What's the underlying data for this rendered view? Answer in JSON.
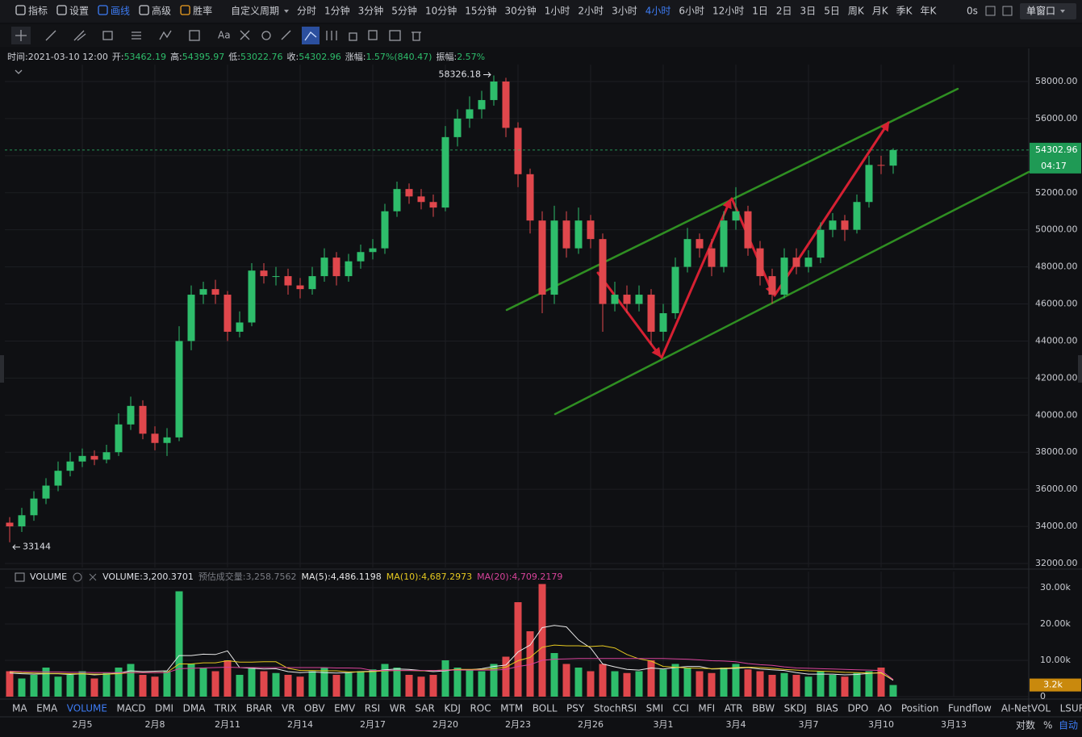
{
  "toolbar": {
    "left": [
      "指标",
      "设置",
      "画线",
      "高级",
      "胜率"
    ],
    "custom": "自定义周期",
    "periods": [
      "分时",
      "1分钟",
      "3分钟",
      "5分钟",
      "10分钟",
      "15分钟",
      "30分钟",
      "1小时",
      "2小时",
      "3小时",
      "4小时",
      "6小时",
      "12小时",
      "1日",
      "2日",
      "3日",
      "5日",
      "周K",
      "月K",
      "季K",
      "年K"
    ],
    "timer": "0s",
    "window": "单窗口",
    "font_tool": "Aa"
  },
  "info": [
    {
      "label": "时间:",
      "value": "2021-03-10 12:00"
    },
    {
      "label": "开:"
    },
    {
      "label": "高:"
    },
    {
      "label": "低:"
    },
    {
      "label": "收:"
    },
    {
      "label": "涨幅:",
      "value": "1.57%(840.47)"
    },
    {
      "label": "振幅:",
      "value": "2.57%"
    }
  ],
  "countdown": "04:17",
  "volume_header": {
    "name": "VOLUME",
    "items": [
      "VOLUME:3,200.3701",
      "预估成交量:3,258.7562",
      "MA(5):4,486.1198",
      "MA(10):4,687.2973",
      "MA(20):4,709.2179"
    ]
  },
  "indicator_tabs": [
    "MA",
    "EMA",
    "VOLUME",
    "MACD",
    "DMI",
    "DMA",
    "TRIX",
    "BRAR",
    "VR",
    "OBV",
    "EMV",
    "RSI",
    "WR",
    "SAR",
    "KDJ",
    "ROC",
    "MTM",
    "BOLL",
    "PSY",
    "StochRSI",
    "SMI",
    "CCI",
    "MFI",
    "ATR",
    "BBW",
    "SKDJ",
    "BIAS",
    "DPO",
    "AO",
    "Position",
    "Fundflow",
    "AI-NetVOL",
    "LSUR"
  ],
  "scale_options": [
    "对数",
    "%",
    "自动"
  ],
  "chart_data": [
    {
      "type": "candlestick",
      "up_color": "#2ebd6b",
      "down_color": "#e0474c",
      "grid": true,
      "x": [
        -3,
        -2.5,
        -2,
        -1.5,
        -1,
        -0.5,
        0,
        0.5,
        1,
        1.5,
        2,
        2.5,
        3,
        3.5,
        4,
        4.5,
        5,
        5.5,
        6,
        6.5,
        7,
        7.5,
        8,
        8.5,
        9,
        9.5,
        10,
        10.5,
        11,
        11.5,
        12,
        12.5,
        13,
        13.5,
        14,
        14.5,
        15,
        15.5,
        16,
        16.5,
        17,
        17.5,
        18,
        18.5,
        19,
        19.5,
        20,
        20.5,
        21,
        21.5,
        22,
        22.5,
        23,
        23.5,
        24,
        24.5,
        25,
        25.5,
        26,
        26.5,
        27,
        27.5,
        28,
        28.5,
        29,
        29.5,
        30,
        30.5,
        31,
        31.5,
        32,
        32.5,
        33,
        33.5
      ],
      "open": [
        34200,
        34000,
        34600,
        35500,
        36200,
        37000,
        37500,
        37800,
        37600,
        38000,
        39500,
        40500,
        39000,
        38500,
        38800,
        44000,
        46500,
        46800,
        46500,
        44500,
        45000,
        47800,
        47500,
        47500,
        47000,
        46800,
        47500,
        48500,
        47500,
        48300,
        48800,
        49000,
        51000,
        52200,
        51800,
        51500,
        51200,
        55000,
        56000,
        56500,
        57000,
        58000,
        55500,
        53000,
        50500,
        46500,
        50500,
        49000,
        50500,
        49500,
        46000,
        46500,
        46000,
        46500,
        44500,
        45500,
        48000,
        49500,
        49000,
        48000,
        50500,
        51000,
        49000,
        47500,
        46500,
        48500,
        48000,
        48500,
        50000,
        50500,
        50000,
        51500,
        53500,
        53462.19
      ],
      "high": [
        34500,
        35000,
        35900,
        36600,
        37500,
        38000,
        38200,
        38100,
        38400,
        40100,
        41000,
        40800,
        39400,
        39300,
        44800,
        47000,
        47200,
        47300,
        46700,
        45600,
        48200,
        48200,
        48000,
        47900,
        47400,
        48000,
        49000,
        48800,
        48700,
        49200,
        49500,
        51400,
        52600,
        52500,
        52200,
        51900,
        55600,
        56500,
        57200,
        57500,
        58326.18,
        58200,
        55800,
        53300,
        51000,
        51300,
        51000,
        51200,
        50800,
        49800,
        47200,
        47000,
        47000,
        46800,
        46000,
        48500,
        50100,
        49800,
        49500,
        51000,
        52300,
        51300,
        49400,
        47900,
        49000,
        49000,
        48900,
        50400,
        50900,
        50800,
        51900,
        54000,
        54000,
        54395.97
      ],
      "low": [
        33144,
        33700,
        34300,
        35200,
        35900,
        36700,
        37200,
        37300,
        37400,
        37800,
        39200,
        38700,
        38100,
        37800,
        38600,
        43500,
        46000,
        46000,
        44000,
        44200,
        44800,
        47100,
        47000,
        46500,
        46300,
        46500,
        47200,
        47000,
        47200,
        47900,
        48400,
        48700,
        50700,
        51400,
        51100,
        50700,
        51000,
        54500,
        55500,
        56000,
        56700,
        55000,
        52300,
        49800,
        45500,
        46000,
        48500,
        48700,
        49000,
        44500,
        45600,
        45500,
        45600,
        43800,
        44000,
        45200,
        47700,
        48500,
        47500,
        47700,
        50000,
        48600,
        47000,
        46000,
        46300,
        47600,
        47700,
        48200,
        49600,
        49400,
        49800,
        51200,
        53000,
        53022.76
      ],
      "close": [
        34000,
        34600,
        35500,
        36200,
        37000,
        37500,
        37800,
        37600,
        38000,
        39500,
        40500,
        39000,
        38500,
        38800,
        44000,
        46500,
        46800,
        46500,
        44500,
        45000,
        47800,
        47500,
        47500,
        47000,
        46800,
        47500,
        48500,
        47500,
        48300,
        48800,
        49000,
        51000,
        52200,
        51800,
        51500,
        51200,
        55000,
        56000,
        56500,
        57000,
        58000,
        55500,
        53000,
        50500,
        46500,
        50500,
        49000,
        50500,
        49500,
        46000,
        46500,
        46000,
        46500,
        44500,
        45500,
        48000,
        49500,
        49000,
        48000,
        50500,
        51000,
        49000,
        47500,
        46500,
        48500,
        48000,
        48500,
        50000,
        50500,
        50000,
        51500,
        53500,
        53462.19,
        54302.96
      ],
      "xlim": [
        -3.2,
        39.1
      ],
      "xticks": [
        {
          "value": 0,
          "label": "2月5"
        },
        {
          "value": 3,
          "label": "2月8"
        },
        {
          "value": 6,
          "label": "2月11"
        },
        {
          "value": 9,
          "label": "2月14"
        },
        {
          "value": 12,
          "label": "2月17"
        },
        {
          "value": 15,
          "label": "2月20"
        },
        {
          "value": 18,
          "label": "2月23"
        },
        {
          "value": 21,
          "label": "2月26"
        },
        {
          "value": 24,
          "label": "3月1"
        },
        {
          "value": 27,
          "label": "3月4"
        },
        {
          "value": 30,
          "label": "3月7"
        },
        {
          "value": 33,
          "label": "3月10"
        },
        {
          "value": 36,
          "label": "3月13"
        }
      ],
      "ylim": [
        31782,
        58914
      ],
      "yticks": [
        {
          "value": 32000,
          "label": "32000.00"
        },
        {
          "value": 34000,
          "label": "34000.00"
        },
        {
          "value": 36000,
          "label": "36000.00"
        },
        {
          "value": 38000,
          "label": "38000.00"
        },
        {
          "value": 40000,
          "label": "40000.00"
        },
        {
          "value": 42000,
          "label": "42000.00"
        },
        {
          "value": 44000,
          "label": "44000.00"
        },
        {
          "value": 46000,
          "label": "46000.00"
        },
        {
          "value": 48000,
          "label": "48000.00"
        },
        {
          "value": 50000,
          "label": "50000.00"
        },
        {
          "value": 52000,
          "label": "52000.00"
        },
        {
          "value": 54000,
          "label": "54000.00"
        },
        {
          "value": 56000,
          "label": "56000.00"
        },
        {
          "value": 58000,
          "label": "58000.00"
        }
      ]
    },
    {
      "type": "bar",
      "current_label": "3.2k",
      "values": [
        7000,
        5000,
        6000,
        8000,
        5500,
        6000,
        7000,
        5000,
        6500,
        8000,
        9000,
        6000,
        5500,
        7000,
        29000,
        9000,
        8000,
        7000,
        10000,
        6000,
        8000,
        7000,
        6500,
        6000,
        5500,
        7000,
        8000,
        6000,
        6500,
        7000,
        7500,
        9000,
        8000,
        6000,
        5500,
        6000,
        10000,
        8000,
        7500,
        7000,
        9000,
        11000,
        26000,
        18000,
        31000,
        12000,
        9000,
        8000,
        7000,
        9000,
        7000,
        6500,
        7000,
        10000,
        7500,
        9000,
        8000,
        7000,
        6500,
        8000,
        9000,
        7500,
        7000,
        6000,
        6500,
        6000,
        5500,
        7000,
        6000,
        5500,
        6500,
        7000,
        8000,
        3200.3701
      ],
      "series": [
        {
          "color": "#e8e8e8",
          "values": [
            6500,
            6300,
            6200,
            6300,
            6300,
            6100,
            6300,
            6000,
            6200,
            6500,
            7100,
            6900,
            7000,
            7100,
            11300,
            11300,
            11700,
            11600,
            12600,
            8000,
            7800,
            7600,
            7700,
            6900,
            6600,
            6800,
            6600,
            6500,
            6600,
            6900,
            7000,
            7400,
            7600,
            7500,
            7200,
            6900,
            7100,
            7500,
            7400,
            7700,
            8300,
            8700,
            12300,
            14200,
            19000,
            19600,
            19200,
            15600,
            13400,
            9000,
            8200,
            7500,
            7300,
            7900,
            7600,
            8000,
            8300,
            8300,
            7600,
            7700,
            7800,
            8000,
            7600,
            7400,
            7200,
            6600,
            6200,
            6200,
            6200,
            6000,
            6100,
            6400,
            6600,
            4486.1198
          ]
        },
        {
          "color": "#e5c820",
          "values": [
            6800,
            6600,
            6500,
            6400,
            6400,
            6300,
            6300,
            6200,
            6200,
            6300,
            6600,
            6600,
            6600,
            6700,
            9000,
            9000,
            9300,
            9300,
            9900,
            9500,
            9500,
            9600,
            9600,
            7800,
            7200,
            7200,
            7100,
            7100,
            6800,
            6800,
            6900,
            7100,
            7200,
            7200,
            7100,
            7200,
            7300,
            7500,
            7500,
            7500,
            7700,
            8100,
            9900,
            10800,
            13600,
            14200,
            14000,
            14000,
            13800,
            14000,
            13400,
            11600,
            10400,
            9800,
            8300,
            8100,
            7900,
            7800,
            7700,
            7800,
            8000,
            8100,
            8000,
            7800,
            7500,
            7300,
            7100,
            7000,
            6900,
            6700,
            6600,
            6500,
            6500,
            4687.2973
          ]
        },
        {
          "color": "#d8439a",
          "values": [
            7000,
            6900,
            6900,
            6800,
            6800,
            6700,
            6700,
            6600,
            6600,
            6600,
            6600,
            6600,
            6600,
            6600,
            7700,
            7800,
            7900,
            8000,
            8100,
            8000,
            8000,
            8000,
            8000,
            8000,
            8000,
            8000,
            8000,
            7900,
            7900,
            7800,
            7200,
            7200,
            7200,
            7200,
            7200,
            7200,
            7300,
            7300,
            7300,
            7300,
            7300,
            7500,
            8300,
            8800,
            10000,
            10300,
            10400,
            10500,
            10500,
            10500,
            10500,
            10500,
            10500,
            10500,
            10500,
            10400,
            10300,
            10100,
            9900,
            9800,
            9600,
            9100,
            8800,
            8600,
            8200,
            7900,
            7800,
            7700,
            7600,
            7500,
            7400,
            7300,
            7200,
            4709.2179
          ]
        }
      ],
      "ylim": [
        0,
        34000
      ],
      "yticks": [
        0,
        {
          "value": 10000,
          "label": "10.00k"
        },
        {
          "value": 20000,
          "label": "20.00k"
        },
        {
          "value": 30000,
          "label": "30.00k"
        }
      ]
    }
  ]
}
